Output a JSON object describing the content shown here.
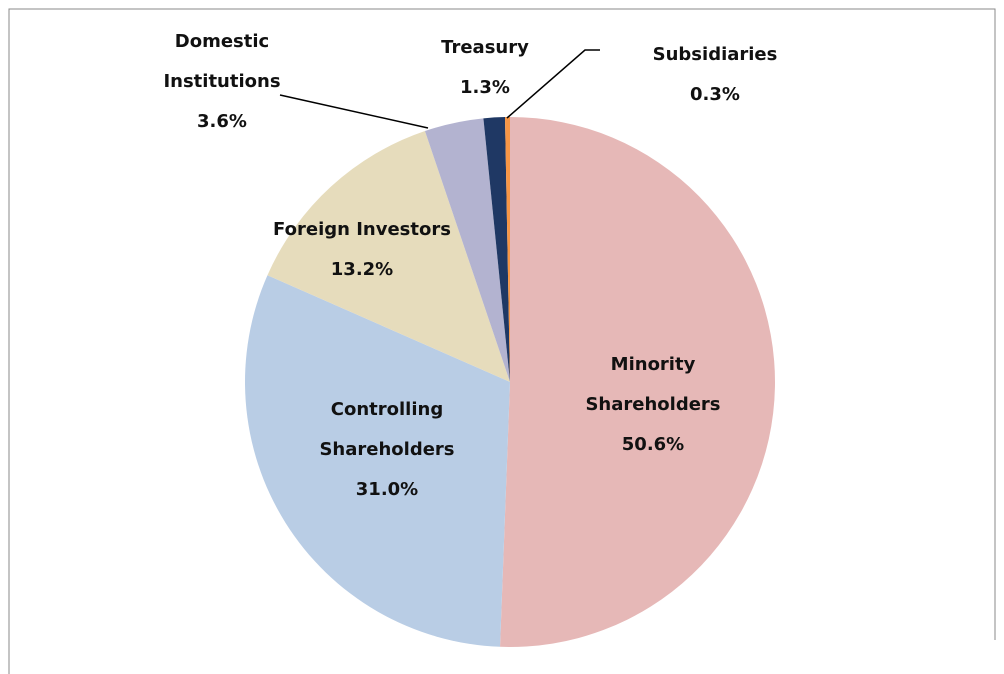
{
  "chart_data": {
    "type": "pie",
    "categories": [
      "Minority Shareholders",
      "Controlling Shareholders",
      "Foreign Investors",
      "Domestic Institutions",
      "Treasury",
      "Subsidiaries"
    ],
    "values": [
      50.6,
      31.0,
      13.2,
      3.6,
      1.3,
      0.3
    ],
    "value_labels": [
      "50.6%",
      "31.0%",
      "13.2%",
      "3.6%",
      "1.3%",
      "0.3%"
    ],
    "colors": [
      "#e6b8b7",
      "#b9cde5",
      "#e6dcbc",
      "#b3b3d0",
      "#1f3864",
      "#f79646"
    ]
  }
}
